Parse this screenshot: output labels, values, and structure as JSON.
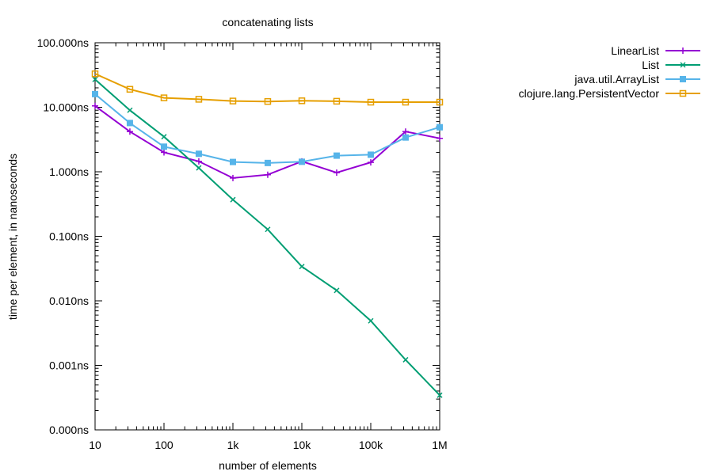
{
  "chart_data": {
    "type": "line",
    "title": "concatenating lists",
    "xlabel": "number of elements",
    "ylabel": "time per element, in nanoseconds",
    "x_scale": "log",
    "y_scale": "log",
    "xlim": [
      10,
      1000000
    ],
    "ylim": [
      0.0001,
      100
    ],
    "x_ticks": [
      {
        "value": 10,
        "label": "10"
      },
      {
        "value": 100,
        "label": "100"
      },
      {
        "value": 1000,
        "label": "1k"
      },
      {
        "value": 10000,
        "label": "10k"
      },
      {
        "value": 100000,
        "label": "100k"
      },
      {
        "value": 1000000,
        "label": "1M"
      }
    ],
    "y_ticks": [
      {
        "value": 0.0001,
        "label": "0.000ns"
      },
      {
        "value": 0.001,
        "label": "0.001ns"
      },
      {
        "value": 0.01,
        "label": "0.010ns"
      },
      {
        "value": 0.1,
        "label": "0.100ns"
      },
      {
        "value": 1,
        "label": "1.000ns"
      },
      {
        "value": 10,
        "label": "10.000ns"
      },
      {
        "value": 100,
        "label": "100.000ns"
      }
    ],
    "grid": false,
    "legend_position": "outside-top-right",
    "x": [
      10,
      32,
      100,
      320,
      1000,
      3200,
      10000,
      32000,
      100000,
      320000,
      1000000
    ],
    "series": [
      {
        "name": "LinearList",
        "color": "#9400d3",
        "marker": "plus",
        "values": [
          10.5,
          4.2,
          2.0,
          1.45,
          0.8,
          0.9,
          1.45,
          0.97,
          1.4,
          4.2,
          3.3
        ]
      },
      {
        "name": "List",
        "color": "#009e73",
        "marker": "cross",
        "values": [
          27,
          9.0,
          3.5,
          1.15,
          0.37,
          0.128,
          0.034,
          0.0145,
          0.0049,
          0.00122,
          0.000345
        ]
      },
      {
        "name": "java.util.ArrayList",
        "color": "#56b4e9",
        "marker": "filled-square",
        "values": [
          16,
          5.7,
          2.45,
          1.9,
          1.42,
          1.37,
          1.43,
          1.78,
          1.84,
          3.4,
          4.9
        ]
      },
      {
        "name": "clojure.lang.PersistentVector",
        "color": "#e69f00",
        "marker": "open-square",
        "values": [
          33,
          19,
          14,
          13.3,
          12.5,
          12.3,
          12.6,
          12.4,
          12.0,
          12.0,
          12.0
        ]
      }
    ]
  }
}
